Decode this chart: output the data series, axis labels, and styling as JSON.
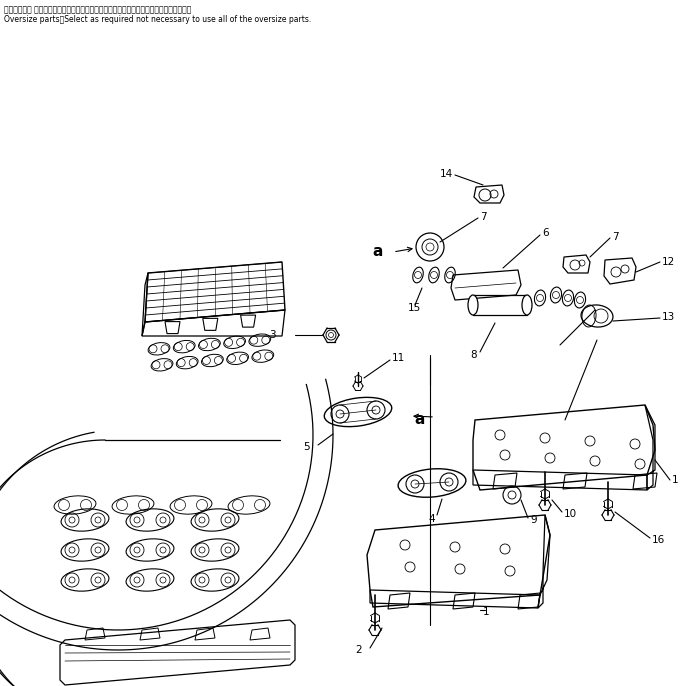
{
  "background_color": "#ffffff",
  "header_line1": "オーバサイズ 部品：全点オーバサイズ部品を使用する必要はなく任意に選定してください",
  "header_line2": "Oversize parts：Select as required not necessary to use all of the oversize parts.",
  "fig_width": 6.85,
  "fig_height": 6.86,
  "dpi": 100,
  "lw": 0.8
}
